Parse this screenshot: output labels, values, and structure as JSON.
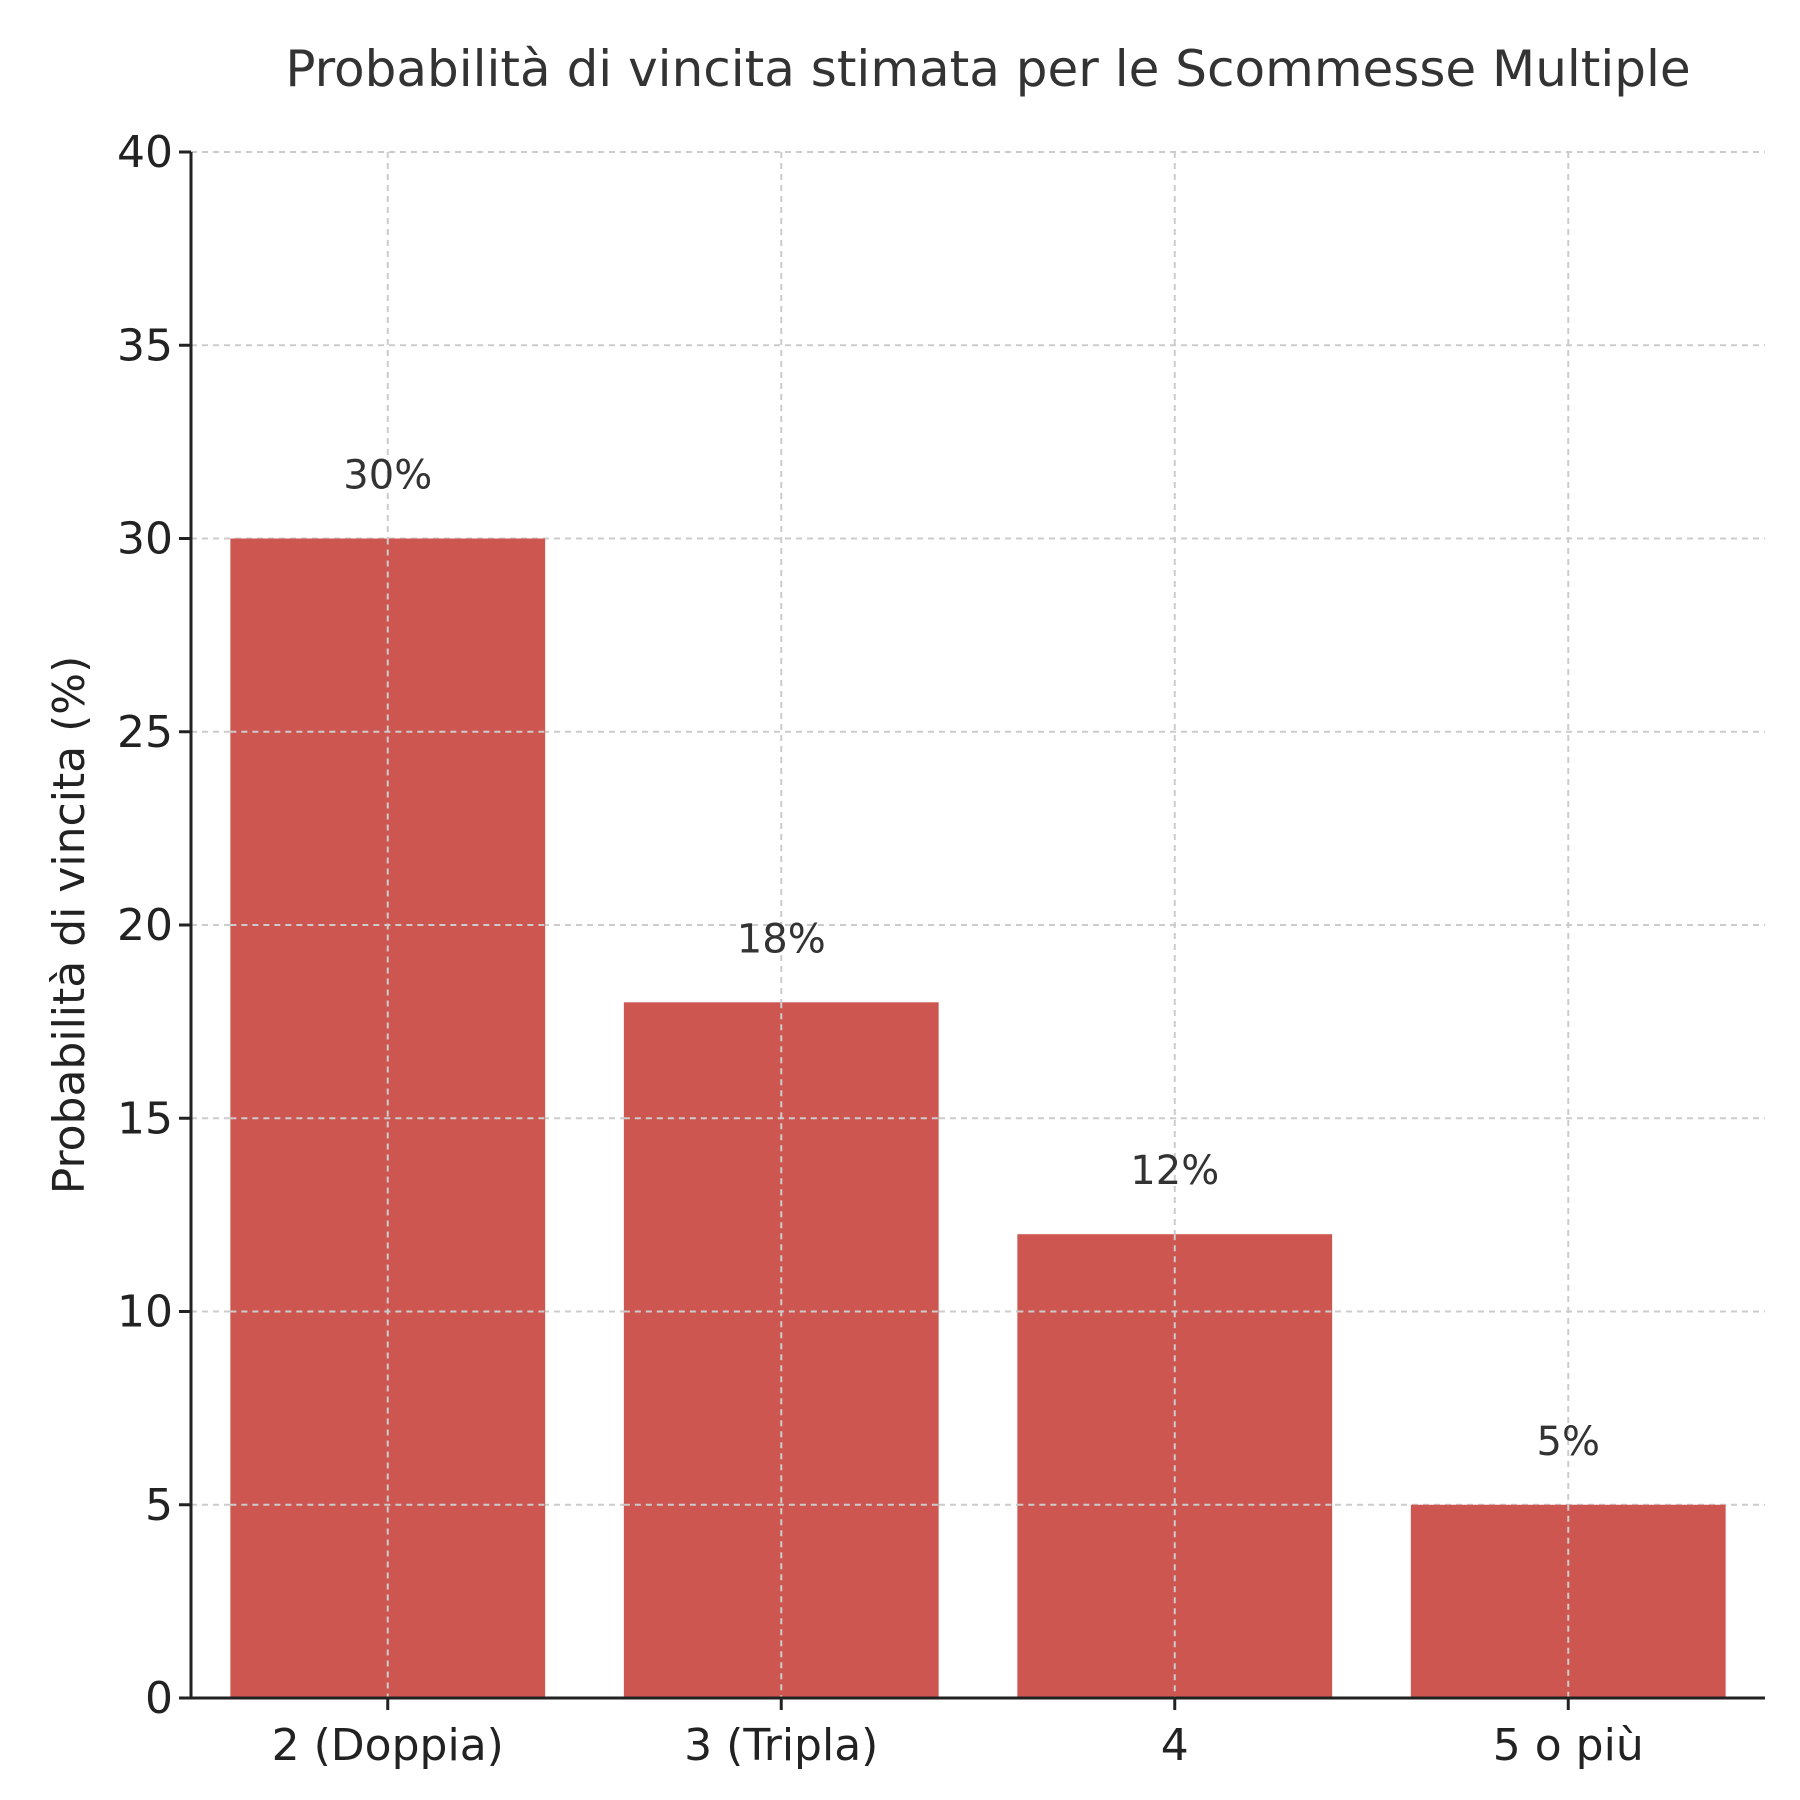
{
  "chart_data": {
    "type": "bar",
    "title": "Probabilità di vincita stimata per le Scommesse Multiple",
    "xlabel": "",
    "ylabel": "Probabilità di vincita (%)",
    "categories": [
      "2 (Doppia)",
      "3 (Tripla)",
      "4",
      "5 o più"
    ],
    "values": [
      30,
      18,
      12,
      5
    ],
    "value_labels": [
      "30%",
      "18%",
      "12%",
      "5%"
    ],
    "ylim": [
      0,
      40
    ],
    "yticks": [
      0,
      5,
      10,
      15,
      20,
      25,
      30,
      35,
      40
    ],
    "ytick_labels": [
      "0",
      "5",
      "10",
      "15",
      "20",
      "25",
      "30",
      "35",
      "40"
    ],
    "bar_color": "#cd5750",
    "grid": true,
    "legend": "none"
  }
}
